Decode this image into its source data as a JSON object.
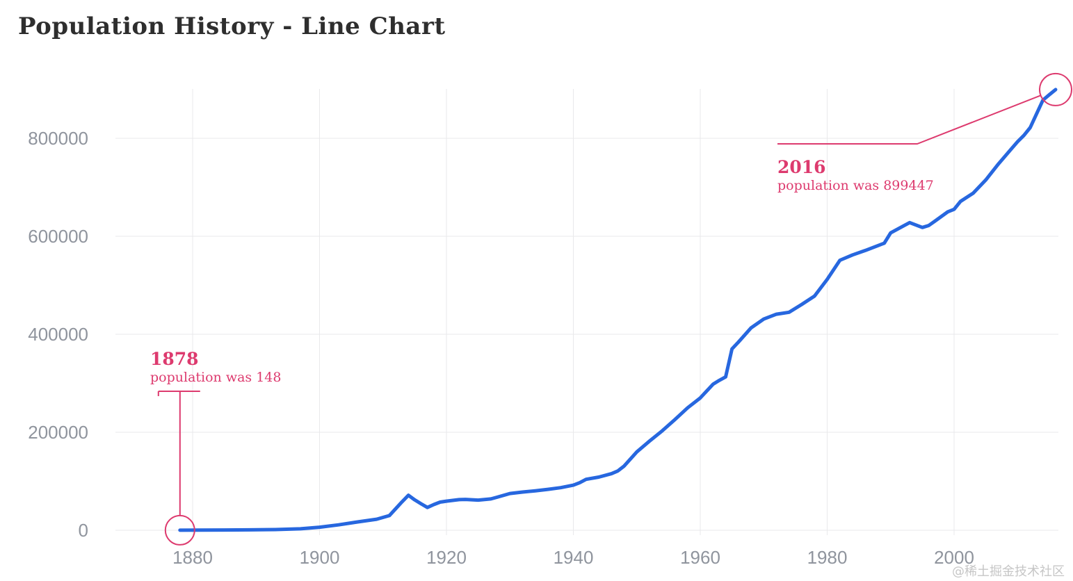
{
  "page": {
    "title": "Population History - Line Chart",
    "watermark": "@稀土掘金技术社区"
  },
  "colors": {
    "series_blue": "#2767df",
    "annotation_pink": "#dd3a6e",
    "grid": "#e9e9eb",
    "axis_label": "#8f949d",
    "title_text": "#2e2e2e",
    "watermark": "#c6c6c6",
    "background": "#ffffff"
  },
  "chart_data": {
    "type": "line",
    "title": "Population History - Line Chart",
    "xlabel": "",
    "ylabel": "",
    "grid": true,
    "legend": false,
    "x_ticks": [
      1880,
      1900,
      1920,
      1940,
      1960,
      1980,
      2000
    ],
    "y_ticks": [
      0,
      200000,
      400000,
      600000,
      800000
    ],
    "xlim": [
      1867,
      2018
    ],
    "ylim": [
      0,
      903000
    ],
    "series": [
      {
        "name": "population",
        "color": "#2767df",
        "points": [
          [
            1878,
            148
          ],
          [
            1881,
            300
          ],
          [
            1885,
            550
          ],
          [
            1889,
            900
          ],
          [
            1893,
            1400
          ],
          [
            1897,
            3000
          ],
          [
            1900,
            6200
          ],
          [
            1903,
            11000
          ],
          [
            1906,
            17000
          ],
          [
            1909,
            22500
          ],
          [
            1911,
            30000
          ],
          [
            1912,
            44000
          ],
          [
            1913,
            58000
          ],
          [
            1914,
            71500
          ],
          [
            1915,
            62000
          ],
          [
            1916,
            54000
          ],
          [
            1917,
            46500
          ],
          [
            1918,
            52500
          ],
          [
            1919,
            57500
          ],
          [
            1920,
            59500
          ],
          [
            1921,
            61000
          ],
          [
            1922,
            62500
          ],
          [
            1923,
            63000
          ],
          [
            1925,
            61500
          ],
          [
            1927,
            64000
          ],
          [
            1928,
            67500
          ],
          [
            1930,
            75000
          ],
          [
            1932,
            78000
          ],
          [
            1934,
            80500
          ],
          [
            1936,
            83500
          ],
          [
            1938,
            87000
          ],
          [
            1940,
            92000
          ],
          [
            1941,
            97000
          ],
          [
            1942,
            104000
          ],
          [
            1944,
            108500
          ],
          [
            1946,
            115500
          ],
          [
            1947,
            121000
          ],
          [
            1948,
            131000
          ],
          [
            1950,
            160000
          ],
          [
            1952,
            182000
          ],
          [
            1954,
            203000
          ],
          [
            1956,
            226000
          ],
          [
            1958,
            250000
          ],
          [
            1960,
            270000
          ],
          [
            1962,
            298000
          ],
          [
            1963,
            306000
          ],
          [
            1964,
            313000
          ],
          [
            1965,
            370000
          ],
          [
            1966,
            384000
          ],
          [
            1968,
            413000
          ],
          [
            1970,
            431000
          ],
          [
            1972,
            441000
          ],
          [
            1974,
            445000
          ],
          [
            1976,
            461000
          ],
          [
            1978,
            478000
          ],
          [
            1980,
            512000
          ],
          [
            1982,
            551000
          ],
          [
            1984,
            562000
          ],
          [
            1986,
            571000
          ],
          [
            1988,
            581000
          ],
          [
            1989,
            586000
          ],
          [
            1990,
            607000
          ],
          [
            1992,
            621000
          ],
          [
            1993,
            628000
          ],
          [
            1995,
            618000
          ],
          [
            1996,
            622000
          ],
          [
            1997,
            631000
          ],
          [
            1999,
            650000
          ],
          [
            2000,
            655000
          ],
          [
            2001,
            671000
          ],
          [
            2003,
            688000
          ],
          [
            2005,
            715000
          ],
          [
            2007,
            748000
          ],
          [
            2009,
            778000
          ],
          [
            2010,
            793000
          ],
          [
            2011,
            806000
          ],
          [
            2012,
            822000
          ],
          [
            2013,
            850000
          ],
          [
            2014,
            878000
          ],
          [
            2015,
            889000
          ],
          [
            2016,
            899447
          ]
        ]
      }
    ],
    "annotations": [
      {
        "year": 1878,
        "value": 148,
        "title": "1878",
        "subtitle": "population was 148"
      },
      {
        "year": 2016,
        "value": 899447,
        "title": "2016",
        "subtitle": "population was 899447"
      }
    ]
  }
}
